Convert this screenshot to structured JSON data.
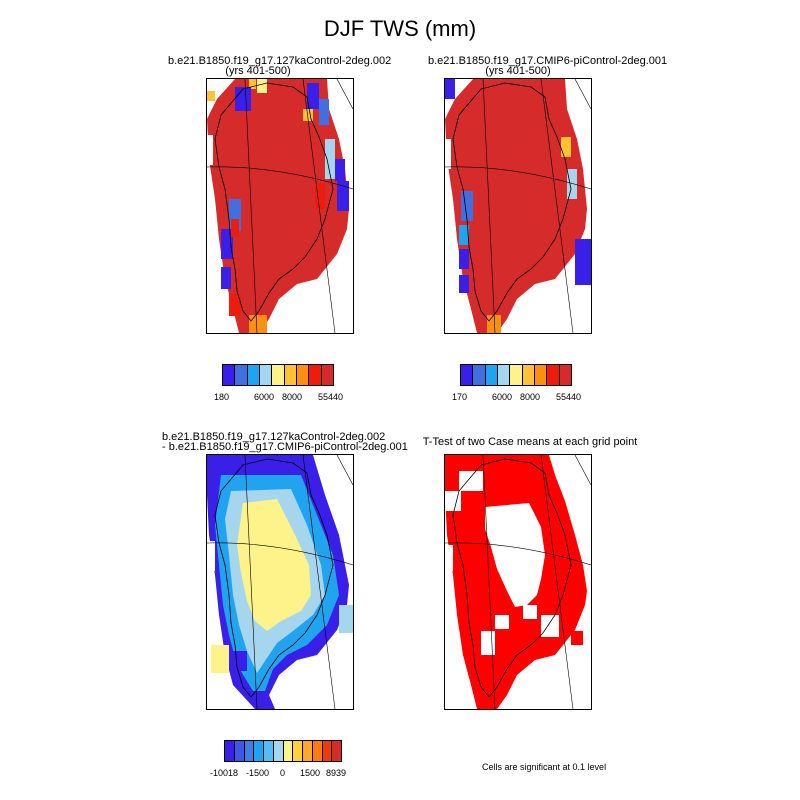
{
  "title": "DJF TWS (mm)",
  "panels": [
    {
      "title_line1": "b.e21.B1850.f19_g17.127kaControl-2deg.002",
      "title_line2": "(yrs 401-500)",
      "colorbar": {
        "colors": [
          "#3a1fe8",
          "#3f6fe0",
          "#20a4f0",
          "#a6d6ee",
          "#fdf38a",
          "#ffc234",
          "#fb8f0e",
          "#ee1c0a",
          "#d52b2b"
        ],
        "labels": [
          "180",
          "6000",
          "8000",
          "55440"
        ]
      }
    },
    {
      "title_line1": "b.e21.B1850.f19_g17.CMIP6-piControl-2deg.001",
      "title_line2": "(yrs 401-500)",
      "colorbar": {
        "colors": [
          "#3a1fe8",
          "#3f6fe0",
          "#20a4f0",
          "#a6d6ee",
          "#fdf38a",
          "#ffc234",
          "#fb8f0e",
          "#ee1c0a",
          "#d52b2b"
        ],
        "labels": [
          "170",
          "6000",
          "8000",
          "55440"
        ]
      }
    },
    {
      "title_line1": "b.e21.B1850.f19_g17.127kaControl-2deg.002",
      "title_line2": "- b.e21.B1850.f19_g17.CMIP6-piControl-2deg.001",
      "colorbar": {
        "colors": [
          "#3a1fe8",
          "#3f56e6",
          "#3f7ee4",
          "#20a4f0",
          "#54bdf2",
          "#a6d6ee",
          "#fdf38a",
          "#ffd238",
          "#ffa82a",
          "#fb7c10",
          "#ee3a0c",
          "#d52b2b"
        ],
        "labels": [
          "-10018",
          "-1500",
          "0",
          "1500",
          "8939"
        ]
      }
    },
    {
      "title_line1": "T-Test of two Case means at each grid point",
      "note": "Cells are significant at 0.1 level"
    }
  ],
  "chart_data": {
    "type": "heatmap",
    "title": "DJF TWS (mm)",
    "units": "mm",
    "season": "DJF",
    "variable": "TWS",
    "region": "Greenland",
    "panels": [
      {
        "name": "b.e21.B1850.f19_g17.127kaControl-2deg.002 (yrs 401-500)",
        "colorbar_range": [
          180,
          55440
        ],
        "interior_value": 55440,
        "colorbar_ticks": [
          180,
          6000,
          8000,
          55440
        ]
      },
      {
        "name": "b.e21.B1850.f19_g17.CMIP6-piControl-2deg.001 (yrs 401-500)",
        "colorbar_range": [
          170,
          55440
        ],
        "interior_value": 55440,
        "colorbar_ticks": [
          170,
          6000,
          8000,
          55440
        ]
      },
      {
        "name": "difference",
        "colorbar_range": [
          -10018,
          8939
        ],
        "colorbar_ticks": [
          -10018,
          -1500,
          0,
          1500,
          8939
        ],
        "interior_value": 0,
        "margin_value": -10018
      },
      {
        "name": "T-Test of two Case means at each grid point",
        "significance_level": 0.1
      }
    ]
  }
}
